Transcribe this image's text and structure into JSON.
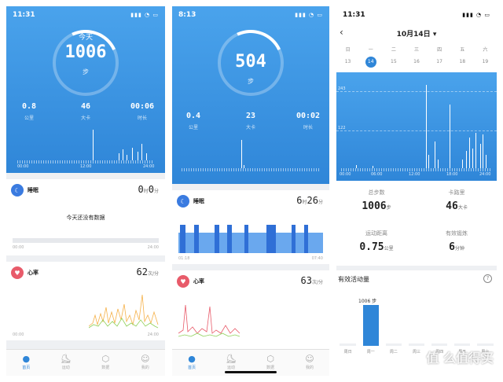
{
  "screen1": {
    "time": "11:31",
    "ring_label": "今天",
    "steps": "1006",
    "steps_unit": "步",
    "stats": [
      {
        "value": "0.8",
        "unit": "公里"
      },
      {
        "value": "46",
        "unit": "大卡"
      },
      {
        "value": "00:06",
        "unit": "时长"
      }
    ],
    "axis": [
      "00:00",
      "12:00",
      "24:00"
    ],
    "sleep": {
      "title": "睡眠",
      "hours": "0",
      "h_unit": "时",
      "minutes": "0",
      "m_unit": "分",
      "empty_text": "今天还没有数据",
      "axis": [
        "00:00",
        "24:00"
      ]
    },
    "heart": {
      "title": "心率",
      "value": "62",
      "unit": "次/分",
      "axis": [
        "00:00",
        "24:00"
      ]
    },
    "tabs": [
      "首页",
      "运动",
      "数据",
      "我的"
    ]
  },
  "screen2": {
    "time": "8:13",
    "steps": "504",
    "steps_unit": "步",
    "stats": [
      {
        "value": "0.4",
        "unit": "公里"
      },
      {
        "value": "23",
        "unit": "大卡"
      },
      {
        "value": "00:02",
        "unit": "时长"
      }
    ],
    "sleep": {
      "title": "睡眠",
      "hours": "6",
      "h_unit": "时",
      "minutes": "26",
      "m_unit": "分",
      "axis": [
        "01:18",
        "07:40"
      ]
    },
    "heart": {
      "title": "心率",
      "value": "63",
      "unit": "次/分"
    },
    "tabs": [
      "首页",
      "运动",
      "数据",
      "我的"
    ]
  },
  "screen3": {
    "time": "11:31",
    "date": "10月14日",
    "weekdays": [
      "日",
      "一",
      "二",
      "三",
      "四",
      "五",
      "六"
    ],
    "days": [
      "13",
      "14",
      "15",
      "16",
      "17",
      "18",
      "19"
    ],
    "selected_day_index": 1,
    "chart_axis": [
      "00:00",
      "06:00",
      "12:00",
      "18:00",
      "24:00"
    ],
    "gridlines": [
      "243",
      "122"
    ],
    "summary": [
      {
        "label": "总步数",
        "value": "1006",
        "unit": "步"
      },
      {
        "label": "卡路里",
        "value": "46",
        "unit": "大卡"
      },
      {
        "label": "运动距离",
        "value": "0.75",
        "unit": "公里"
      },
      {
        "label": "有效锻炼",
        "value": "6",
        "unit": "分钟"
      }
    ],
    "active_title": "有效活动量",
    "weekly_label": "1006 步",
    "weekly_days": [
      "周日",
      "周一",
      "周二",
      "周三",
      "周四",
      "周五",
      "周六"
    ],
    "weekly_values": [
      0,
      1006,
      0,
      0,
      0,
      0,
      0
    ],
    "watermark": "值 么值得买"
  },
  "colors": {
    "primary": "#2f86d8",
    "sleep": "#3a7be0",
    "heart": "#e85b6a"
  }
}
